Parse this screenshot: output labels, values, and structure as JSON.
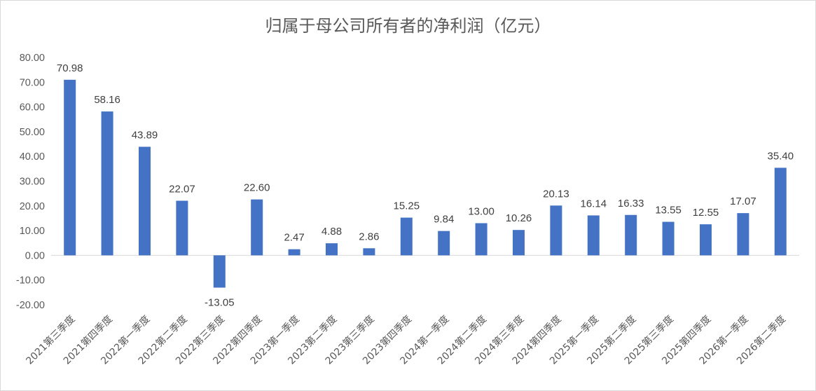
{
  "chart_data": {
    "type": "bar",
    "title": "归属于母公司所有者的净利润（亿元）",
    "xlabel": "",
    "ylabel": "",
    "ylim": [
      -20,
      80
    ],
    "yticks": [
      "80.00",
      "70.00",
      "60.00",
      "50.00",
      "40.00",
      "30.00",
      "20.00",
      "10.00",
      "0.00",
      "-10.00",
      "-20.00"
    ],
    "grid": false,
    "legend": "none",
    "bar_color": "#4472c4",
    "categories": [
      "2021第三季度",
      "2021第四季度",
      "2022第一季度",
      "2022第二季度",
      "2022第三季度",
      "2022第四季度",
      "2023第一季度",
      "2023第二季度",
      "2023第三季度",
      "2023第四季度",
      "2024第一季度",
      "2024第二季度",
      "2024第三季度",
      "2024第四季度",
      "2025第一季度",
      "2025第二季度",
      "2025第三季度",
      "2025第四季度",
      "2026第一季度",
      "2026第二季度"
    ],
    "values": [
      70.98,
      58.16,
      43.89,
      22.07,
      -13.05,
      22.6,
      2.47,
      4.88,
      2.86,
      15.25,
      9.84,
      13.0,
      10.26,
      20.13,
      16.14,
      16.33,
      13.55,
      12.55,
      17.07,
      35.4
    ],
    "labels": [
      "70.98",
      "58.16",
      "43.89",
      "22.07",
      "-13.05",
      "22.60",
      "2.47",
      "4.88",
      "2.86",
      "15.25",
      "9.84",
      "13.00",
      "10.26",
      "20.13",
      "16.14",
      "16.33",
      "13.55",
      "12.55",
      "17.07",
      "35.40"
    ]
  }
}
